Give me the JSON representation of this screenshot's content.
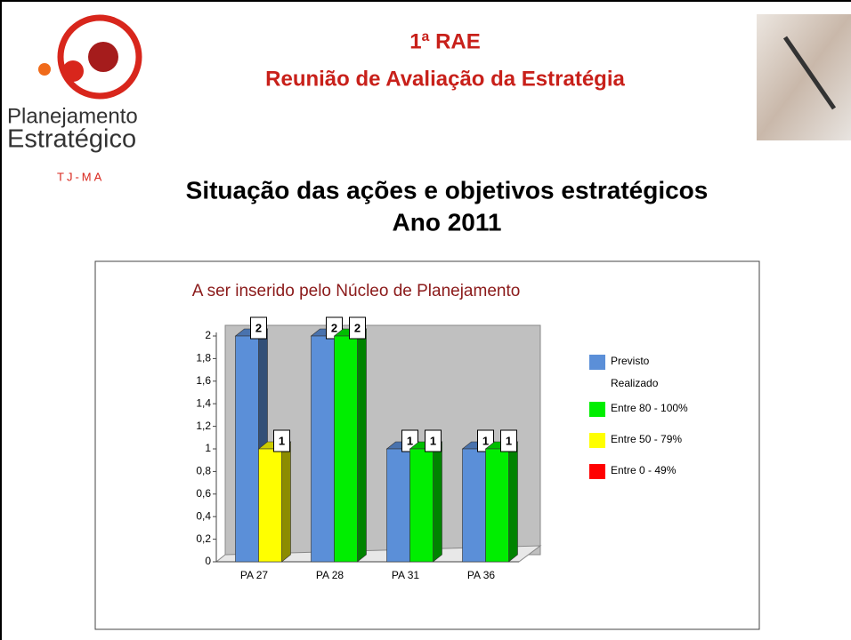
{
  "header": {
    "title": "1ª RAE",
    "subtitle": "Reunião de Avaliação da Estratégia"
  },
  "logo": {
    "line1": "Planejamento",
    "line2": "Estratégico",
    "org": "TJ-MA"
  },
  "slide_title": [
    "Situação das ações e objetivos estratégicos",
    "Ano 2011"
  ],
  "chart_data": {
    "type": "bar3d",
    "title": "A ser inserido pelo Núcleo de Planejamento",
    "categories": [
      "PA 27",
      "PA 28",
      "PA 31",
      "PA 36"
    ],
    "series": [
      {
        "name": "Previsto",
        "color": "#5b8fd8",
        "values": [
          2,
          2,
          1,
          1
        ]
      },
      {
        "name": "Realizado",
        "colors": [
          "#ffff00",
          "#00ee00",
          "#00ee00",
          "#00ee00"
        ],
        "values": [
          1,
          2,
          1,
          1
        ]
      }
    ],
    "color_legend": [
      {
        "name": "Entre 80 - 100%",
        "color": "#00ee00"
      },
      {
        "name": "Entre 50 - 79%",
        "color": "#ffff00"
      },
      {
        "name": "Entre 0 - 49%",
        "color": "#ff0000"
      }
    ],
    "ylim": [
      0,
      2
    ],
    "yticks": [
      0,
      {
        "value": 0.2,
        "label": "0,2"
      },
      {
        "value": 0.4,
        "label": "0,4"
      },
      {
        "value": 0.6,
        "label": "0,6"
      },
      {
        "value": 0.8,
        "label": "0,8"
      },
      1,
      {
        "value": 1.2,
        "label": "1,2"
      },
      {
        "value": 1.4,
        "label": "1,4"
      },
      {
        "value": 1.6,
        "label": "1,6"
      },
      {
        "value": 1.8,
        "label": "1,8"
      },
      2
    ],
    "data_labels": true
  }
}
